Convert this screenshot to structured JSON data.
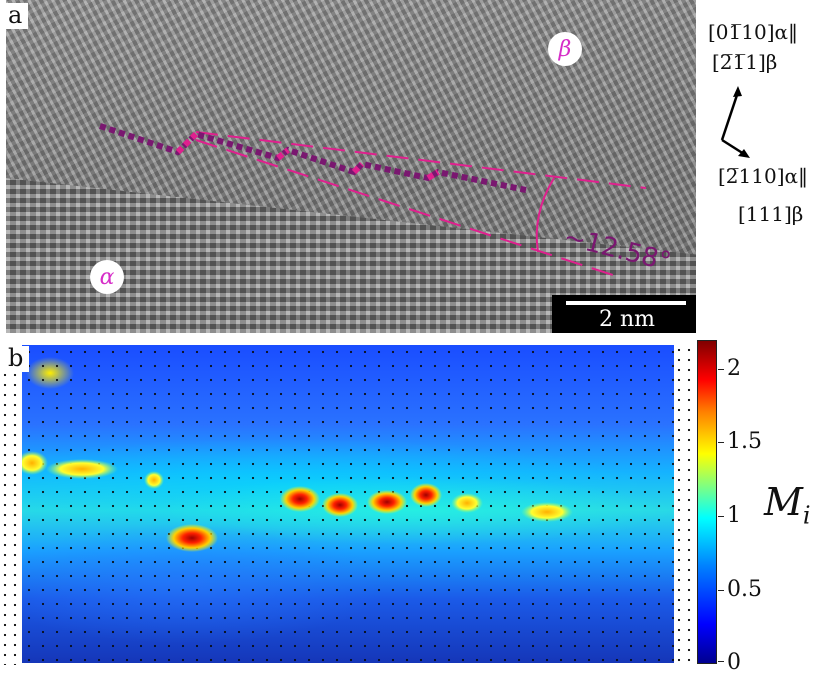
{
  "panel_a": {
    "label": "a",
    "phase_beta": "β",
    "phase_alpha": "α",
    "angle": "~12.58°",
    "scale_bar": "2 nm",
    "orientation": {
      "top_line1": "[01̅10]α‖",
      "top_line2": "[2̅1̅1]β",
      "bottom_line1": "[2̅110]α‖",
      "bottom_line2": "[111]β"
    }
  },
  "panel_b": {
    "label": "b",
    "colorbar": {
      "title": "M",
      "title_sub": "i",
      "ticks": [
        "2",
        "1.5",
        "1",
        "0.5",
        "0"
      ],
      "colormap": "jet"
    }
  },
  "colors": {
    "dotted_line": "#7a1770",
    "dashed_line": "#e0208e",
    "accent_magenta": "#d62ec8"
  }
}
